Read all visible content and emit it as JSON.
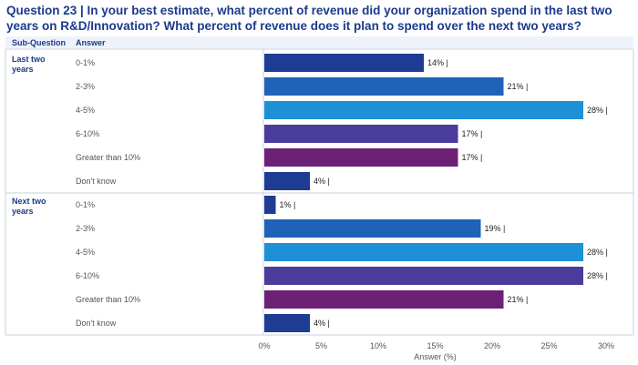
{
  "title": "Question 23 | In your best estimate, what percent of revenue did your organization spend in the last two years on R&D/Innovation? What percent of revenue does it plan to spend over the next two years?",
  "header": {
    "sub_question": "Sub-Question",
    "answer": "Answer"
  },
  "chart_data": {
    "type": "bar",
    "orientation": "horizontal",
    "xlabel": "Answer (%)",
    "xlim": [
      0,
      30
    ],
    "xticks": [
      "0%",
      "5%",
      "10%",
      "15%",
      "20%",
      "25%",
      "30%"
    ],
    "value_suffix": " |",
    "categories": [
      "0-1%",
      "2-3%",
      "4-5%",
      "6-10%",
      "Greater than 10%",
      "Don't know"
    ],
    "category_colors": [
      "#1e3c94",
      "#1f63b8",
      "#1e90d6",
      "#4a3c9c",
      "#6c2176",
      "#1e3c94"
    ],
    "groups": [
      {
        "name": "Last two\nyears",
        "values": [
          14,
          21,
          28,
          17,
          17,
          4
        ]
      },
      {
        "name": "Next two\nyears",
        "values": [
          1,
          19,
          28,
          28,
          21,
          4
        ]
      }
    ]
  }
}
